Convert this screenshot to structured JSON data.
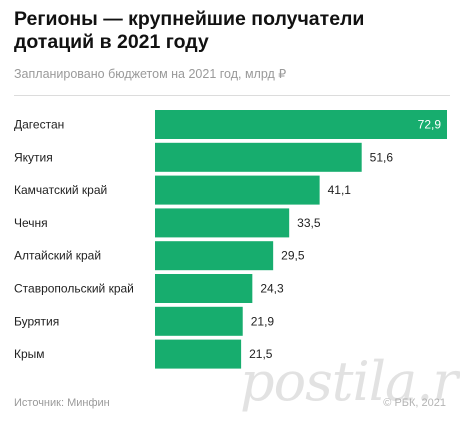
{
  "chart_data": {
    "type": "bar",
    "orientation": "horizontal",
    "title": "Регионы — крупнейшие получатели дотаций в 2021 году",
    "subtitle": "Запланировано бюджетом на 2021 год, млрд ₽",
    "categories": [
      "Дагестан",
      "Якутия",
      "Камчатский край",
      "Чечня",
      "Алтайский край",
      "Ставропольский край",
      "Бурятия",
      "Крым"
    ],
    "values": [
      72.9,
      51.6,
      41.1,
      33.5,
      29.5,
      24.3,
      21.9,
      21.5
    ],
    "value_labels": [
      "72,9",
      "51,6",
      "41,1",
      "33,5",
      "29,5",
      "24,3",
      "21,9",
      "21,5"
    ],
    "xlim": [
      0,
      72.9
    ],
    "grid": false,
    "bar_color": "#17ad6e",
    "label_color_inside": "#ffffff",
    "label_color_outside": "#222222"
  },
  "footer": {
    "source": "Источник: Минфин",
    "credit": "© РБК, 2021"
  },
  "watermark": "postila.ru"
}
